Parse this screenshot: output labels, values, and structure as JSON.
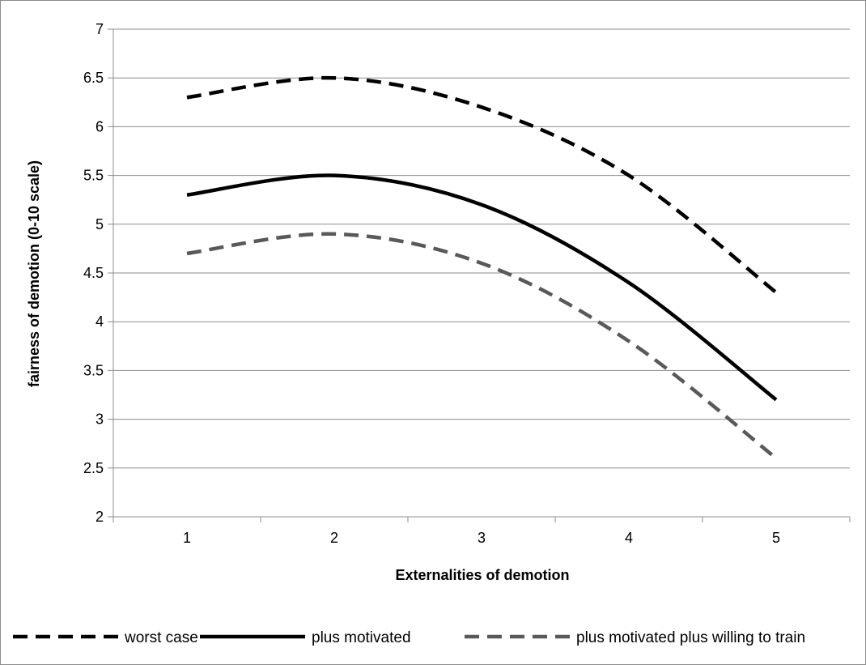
{
  "chart_data": {
    "type": "line",
    "title": "",
    "xlabel": "Externalities of demotion",
    "ylabel": "fairness of demotion (0-10 scale)",
    "x": [
      1,
      2,
      3,
      4,
      5
    ],
    "x_tick_labels": [
      "1",
      "2",
      "3",
      "4",
      "5"
    ],
    "ylim": [
      2,
      7
    ],
    "y_ticks": [
      2,
      2.5,
      3,
      3.5,
      4,
      4.5,
      5,
      5.5,
      6,
      6.5,
      7
    ],
    "y_tick_labels": [
      "2",
      "2.5",
      "3",
      "3.5",
      "4",
      "4.5",
      "5",
      "5.5",
      "6",
      "6.5",
      "7"
    ],
    "grid": "horizontal",
    "legend_position": "bottom",
    "series": [
      {
        "name": "worst case",
        "values": [
          6.3,
          6.5,
          6.2,
          5.5,
          4.3
        ],
        "color": "#000000",
        "style": "dashed"
      },
      {
        "name": "plus motivated",
        "values": [
          5.3,
          5.5,
          5.2,
          4.4,
          3.2
        ],
        "color": "#000000",
        "style": "solid"
      },
      {
        "name": "plus motivated plus willing to train",
        "values": [
          4.7,
          4.9,
          4.6,
          3.8,
          2.6
        ],
        "color": "#595959",
        "style": "dashed"
      }
    ]
  }
}
